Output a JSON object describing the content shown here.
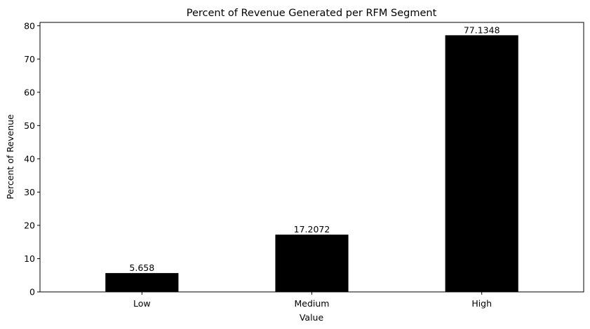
{
  "chart_data": {
    "type": "bar",
    "title": "Percent of Revenue Generated per RFM Segment",
    "xlabel": "Value",
    "ylabel": "Percent of Revenue",
    "categories": [
      "Low",
      "Medium",
      "High"
    ],
    "values": [
      5.658,
      17.2072,
      77.1348
    ],
    "value_labels": [
      "5.658",
      "17.2072",
      "77.1348"
    ],
    "yticks": [
      "0",
      "10",
      "20",
      "30",
      "40",
      "50",
      "60",
      "70",
      "80"
    ],
    "ylim": [
      0,
      81
    ],
    "bar_color": "#000000",
    "grid": false,
    "legend": "none"
  }
}
